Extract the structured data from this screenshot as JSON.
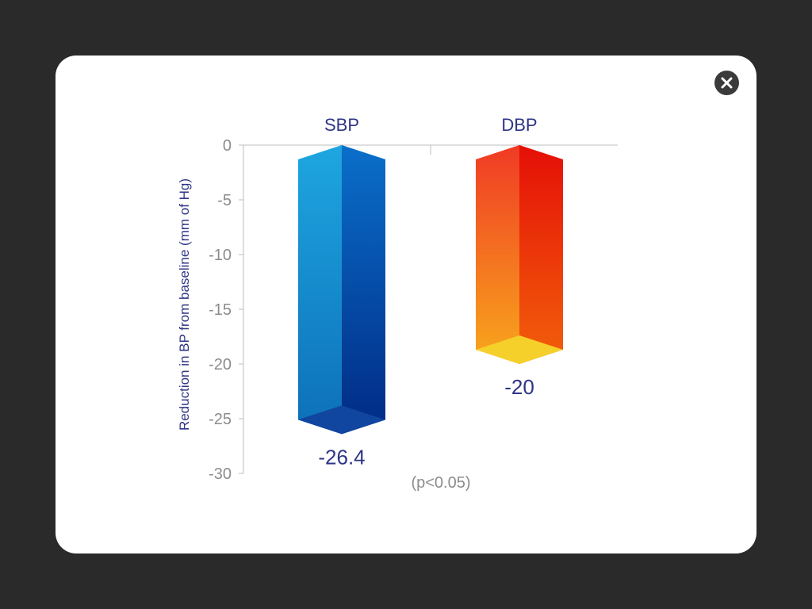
{
  "modal": {
    "close_icon": "close-icon"
  },
  "chart_data": {
    "type": "bar",
    "categories": [
      "SBP",
      "DBP"
    ],
    "values": [
      -26.4,
      -20
    ],
    "value_labels": [
      "-26.4",
      "-20"
    ],
    "ylabel": "Reduction in BP from baseline (mm of Hg)",
    "xlabel": "",
    "ylim": [
      -30,
      0
    ],
    "yticks": [
      0,
      -5,
      -10,
      -15,
      -20,
      -25,
      -30
    ],
    "grid": false,
    "annotation": "(p<0.05)",
    "colors": {
      "SBP": {
        "front_top": "#1ea6e0",
        "front_bottom": "#0d6fb8",
        "side_top": "#0a6fc9",
        "side_bottom": "#002a85",
        "cap": "#1045a0"
      },
      "DBP": {
        "front_top": "#f03a25",
        "front_bottom": "#f8a81c",
        "side_top": "#e50f08",
        "side_bottom": "#f2600a",
        "cap": "#f6d02a"
      }
    }
  }
}
